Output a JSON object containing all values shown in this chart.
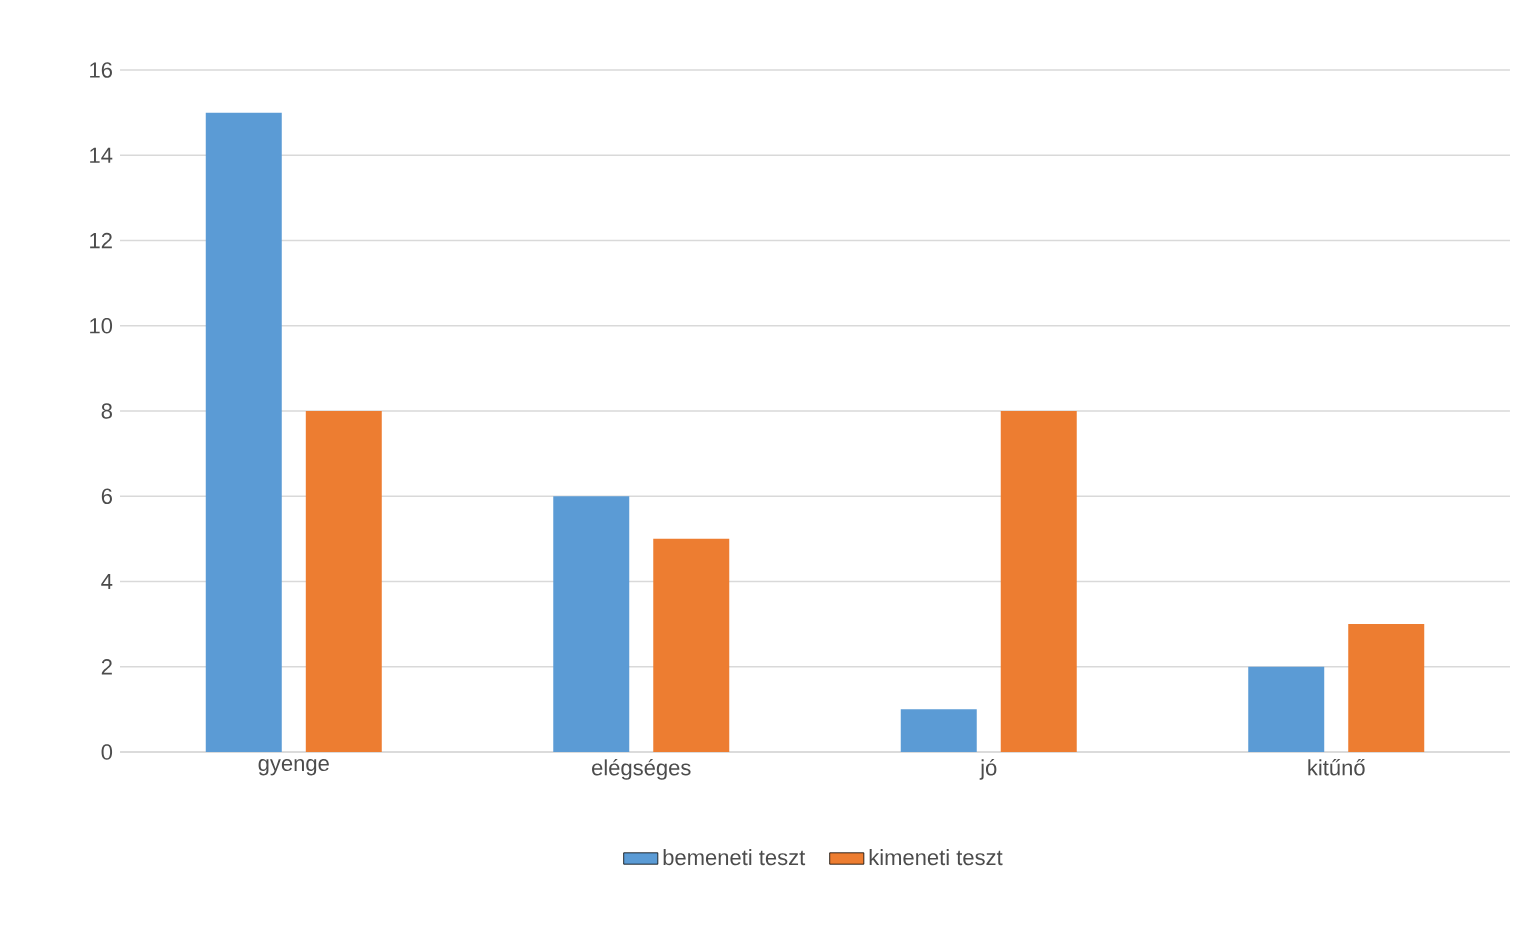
{
  "chart_data": {
    "type": "bar",
    "categories": [
      "gyenge",
      "elégséges",
      "jó",
      "kitűnő"
    ],
    "series": [
      {
        "name": "bemeneti teszt",
        "color": "#5b9bd5",
        "values": [
          15,
          6,
          1,
          2
        ]
      },
      {
        "name": "kimeneti teszt",
        "color": "#ed7d31",
        "values": [
          8,
          5,
          8,
          3
        ]
      }
    ],
    "ylim": [
      0,
      16
    ],
    "yticks": [
      0,
      2,
      4,
      6,
      8,
      10,
      12,
      14,
      16
    ],
    "grid": "y",
    "legend": "bottom"
  }
}
